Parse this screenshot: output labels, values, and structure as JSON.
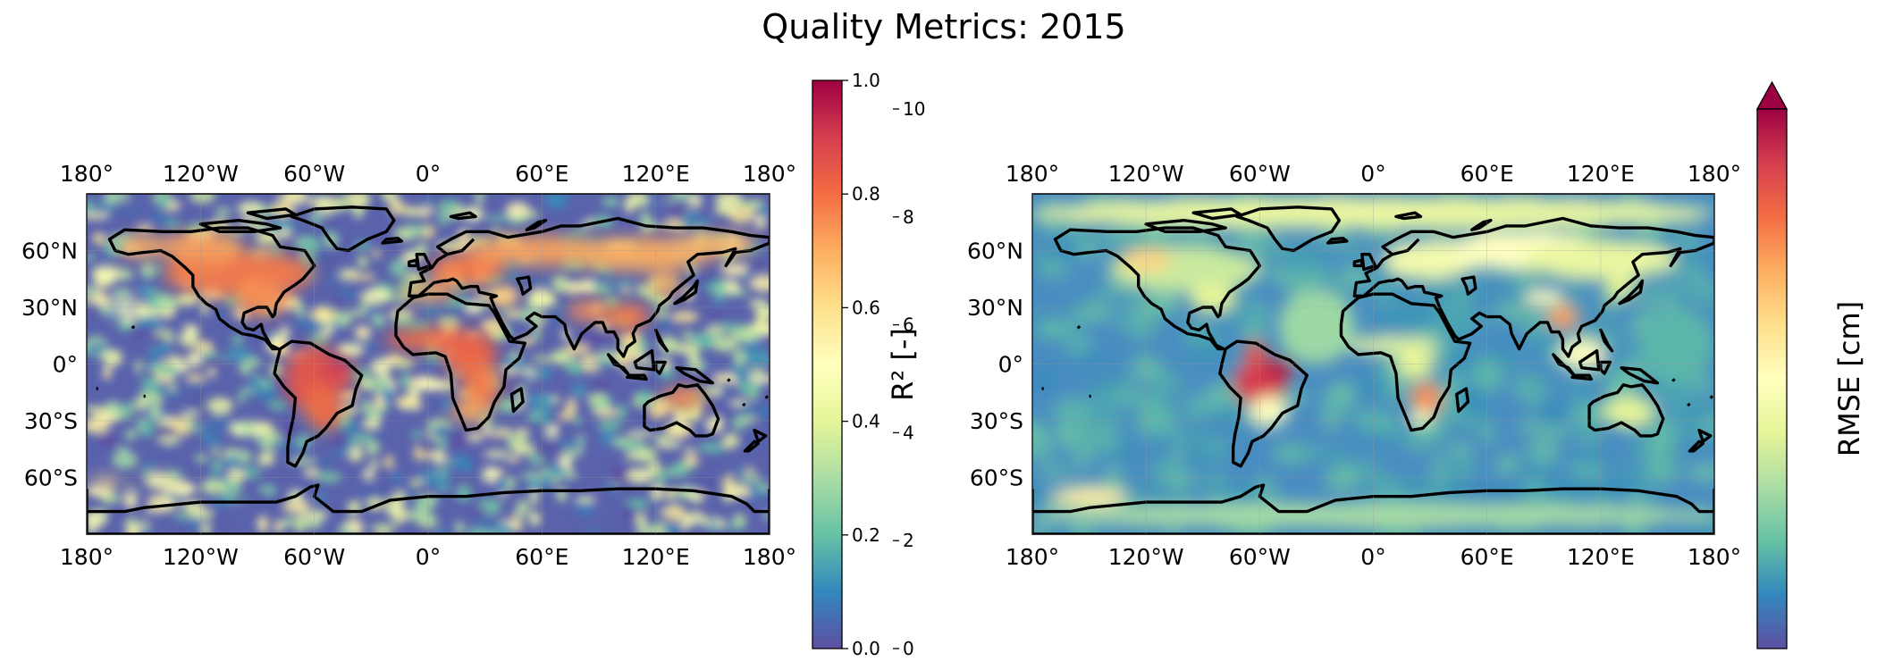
{
  "title": "Quality Metrics: 2015",
  "colormap": {
    "name": "Spectral_r",
    "stops": [
      "#5e4fa2",
      "#3288bd",
      "#66c2a5",
      "#abdda4",
      "#e6f598",
      "#ffffbf",
      "#fee08b",
      "#fdae61",
      "#f46d43",
      "#d53e4f",
      "#9e0142"
    ]
  },
  "chart_data": [
    {
      "type": "heatmap",
      "projection": "plate carree (global map)",
      "x_tick_labels": [
        "180°",
        "120°W",
        "60°W",
        "0°",
        "60°E",
        "120°E",
        "180°"
      ],
      "y_tick_labels": [
        "60°N",
        "30°N",
        "0°",
        "30°S",
        "60°S"
      ],
      "xlim": [
        -180,
        180
      ],
      "ylim": [
        -90,
        90
      ],
      "colorbar": {
        "label": "R² [-]",
        "range": [
          0.0,
          1.0
        ],
        "ticks": [
          "0.0",
          "0.2",
          "0.4",
          "0.6",
          "0.8",
          "1.0"
        ],
        "extend": "neither"
      },
      "high_value_regions": [
        "North America",
        "Amazon / central South America",
        "Sahel and central Africa",
        "Europe",
        "Siberia / northern Asia",
        "South and East Asia",
        "northern Australia"
      ],
      "low_value_regions": [
        "open ocean"
      ]
    },
    {
      "type": "heatmap",
      "projection": "plate carree (global map)",
      "x_tick_labels": [
        "180°",
        "120°W",
        "60°W",
        "0°",
        "60°E",
        "120°E",
        "180°"
      ],
      "y_tick_labels": [
        "60°N",
        "30°N",
        "0°",
        "30°S",
        "60°S"
      ],
      "xlim": [
        -180,
        180
      ],
      "ylim": [
        -90,
        90
      ],
      "colorbar": {
        "label": "RMSE [cm]",
        "range": [
          0,
          10
        ],
        "ticks": [
          "0",
          "2",
          "4",
          "6",
          "8",
          "10"
        ],
        "extend": "max"
      },
      "high_value_regions": [
        "Amazon basin",
        "southern Africa",
        "southeast Asia",
        "high-latitude land"
      ],
      "low_value_regions": [
        "open ocean",
        "Sahara"
      ]
    }
  ]
}
